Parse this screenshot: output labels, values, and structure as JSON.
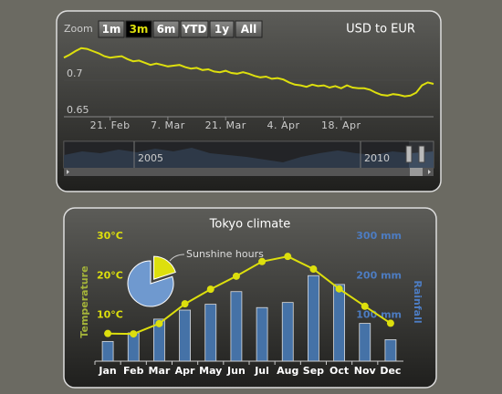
{
  "chart_data": [
    {
      "type": "line",
      "title": "USD to EUR",
      "zoom_label": "Zoom",
      "zoom_buttons": [
        "1m",
        "3m",
        "6m",
        "YTD",
        "1y",
        "All"
      ],
      "zoom_selected": "3m",
      "color": "#dddf0d",
      "grid": true,
      "categories": [
        null,
        null,
        null,
        null,
        null,
        null,
        null,
        null,
        "21. Feb",
        null,
        null,
        null,
        null,
        null,
        null,
        null,
        null,
        null,
        "7. Mar",
        null,
        null,
        null,
        null,
        null,
        null,
        null,
        null,
        null,
        "21. Mar",
        null,
        null,
        null,
        null,
        null,
        null,
        null,
        null,
        null,
        "4. Apr",
        null,
        null,
        null,
        null,
        null,
        null,
        null,
        null,
        null,
        "18. Apr",
        null,
        null,
        null,
        null,
        null,
        null,
        null,
        null,
        null,
        null,
        null,
        null,
        null,
        null,
        null,
        null
      ],
      "values": [
        0.731,
        0.735,
        0.74,
        0.744,
        0.743,
        0.74,
        0.737,
        0.733,
        0.731,
        0.732,
        0.733,
        0.729,
        0.726,
        0.727,
        0.724,
        0.721,
        0.723,
        0.721,
        0.719,
        0.72,
        0.721,
        0.718,
        0.716,
        0.717,
        0.714,
        0.715,
        0.712,
        0.711,
        0.713,
        0.71,
        0.709,
        0.711,
        0.709,
        0.706,
        0.704,
        0.705,
        0.702,
        0.703,
        0.701,
        0.697,
        0.694,
        0.693,
        0.691,
        0.694,
        0.692,
        0.693,
        0.69,
        0.692,
        0.689,
        0.693,
        0.69,
        0.689,
        0.689,
        0.687,
        0.683,
        0.68,
        0.679,
        0.681,
        0.68,
        0.678,
        0.679,
        0.683,
        0.693,
        0.697,
        0.695
      ],
      "ylim": [
        0.65,
        0.755
      ],
      "yticks": [
        0.65,
        0.7
      ],
      "navigator": {
        "labels": [
          "2005",
          "2010"
        ]
      }
    },
    {
      "type": "combo",
      "title": "Tokyo climate",
      "categories": [
        "Jan",
        "Feb",
        "Mar",
        "Apr",
        "May",
        "Jun",
        "Jul",
        "Aug",
        "Sep",
        "Oct",
        "Nov",
        "Dec"
      ],
      "ylabel": "Temperature",
      "y2label": "Rainfall",
      "ylim": [
        0,
        30
      ],
      "yticks": [
        {
          "value": 10,
          "label": "10°C"
        },
        {
          "value": 20,
          "label": "20°C"
        },
        {
          "value": 30,
          "label": "30°C"
        }
      ],
      "y2lim": [
        0,
        300
      ],
      "y2ticks": [
        {
          "value": 100,
          "label": "100 mm"
        },
        {
          "value": 200,
          "label": "200 mm"
        },
        {
          "value": 300,
          "label": "300 mm"
        }
      ],
      "series": [
        {
          "type": "column",
          "axis": "y2",
          "color": "#4572a7",
          "values": [
            49.9,
            71.5,
            106.4,
            129.2,
            144.0,
            176.0,
            135.6,
            148.5,
            216.4,
            194.1,
            95.6,
            54.4
          ]
        },
        {
          "type": "line",
          "color": "#dddf0d",
          "values": [
            7.0,
            6.9,
            9.5,
            14.5,
            18.2,
            21.5,
            25.2,
            26.5,
            23.3,
            18.3,
            13.9,
            9.6
          ]
        }
      ],
      "pie": {
        "name": "Sunshine hours",
        "values": [
          20,
          80
        ],
        "colors": [
          "#dddf0d",
          "#6f99cf"
        ]
      }
    }
  ]
}
